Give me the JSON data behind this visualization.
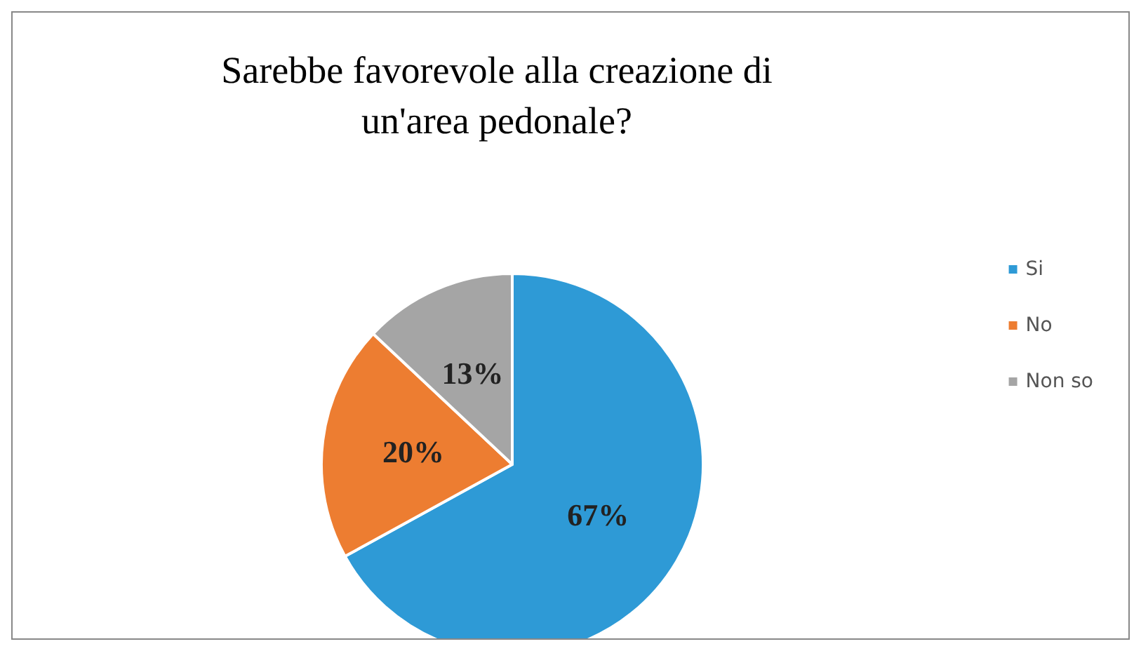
{
  "chart_data": {
    "type": "pie",
    "title": "Sarebbe favorevole alla creazione di\nun'area pedonale?",
    "categories": [
      "Si",
      "No",
      "Non so"
    ],
    "values": [
      67,
      20,
      13
    ],
    "colors": [
      "#2e9ad6",
      "#ed7d31",
      "#a5a5a5"
    ],
    "value_labels": [
      "67%",
      "20%",
      "13%"
    ],
    "legend": "right"
  }
}
